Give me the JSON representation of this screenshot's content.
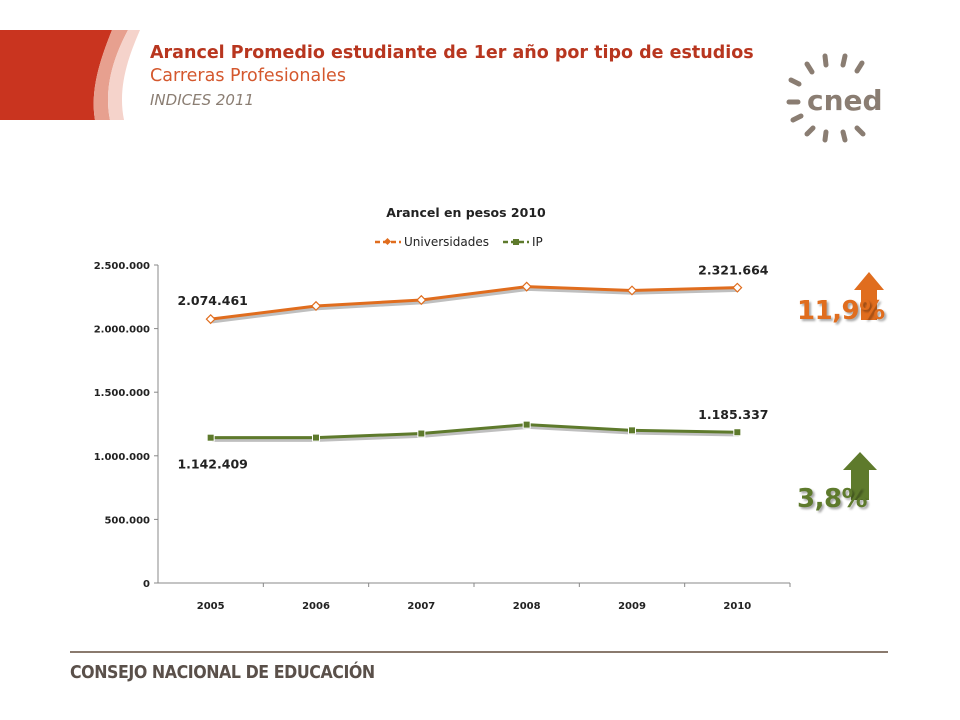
{
  "header": {
    "title": "Arancel Promedio estudiante de 1er año por tipo de estudios",
    "subtitle": "Carreras Profesionales",
    "indices": "INDICES 2011"
  },
  "logo": {
    "text": "cned",
    "icon": "sun-rays-logo-icon"
  },
  "badges": {
    "universidades": {
      "text": "11,9%",
      "color": "#e06d1e",
      "icon": "up-arrow-icon"
    },
    "ip": {
      "text": "3,8%",
      "color": "#5e7a2c",
      "icon": "up-arrow-icon"
    }
  },
  "footer": {
    "text": "CONSEJO NACIONAL DE EDUCACIÓN"
  },
  "chart_data": {
    "type": "line",
    "title": "Arancel en pesos 2010",
    "categories": [
      "2005",
      "2006",
      "2007",
      "2008",
      "2009",
      "2010"
    ],
    "ylim": [
      0,
      2500000
    ],
    "yticks": [
      0,
      500000,
      1000000,
      1500000,
      2000000,
      2500000
    ],
    "ytick_labels": [
      "0",
      "500.000",
      "1.000.000",
      "1.500.000",
      "2.000.000",
      "2.500.000"
    ],
    "legend_position": "top",
    "grid": false,
    "series": [
      {
        "name": "Universidades",
        "color": "#e06d1e",
        "marker": "diamond",
        "values": [
          2074461,
          2178000,
          2225000,
          2330000,
          2300000,
          2321664
        ],
        "labels": [
          {
            "index": 0,
            "text": "2.074.461"
          },
          {
            "index": 5,
            "text": "2.321.664"
          }
        ]
      },
      {
        "name": "IP",
        "color": "#5e7a2c",
        "marker": "square",
        "values": [
          1142409,
          1143000,
          1175000,
          1245000,
          1200000,
          1185337
        ],
        "labels": [
          {
            "index": 0,
            "text": "1.142.409"
          },
          {
            "index": 5,
            "text": "1.185.337"
          }
        ]
      }
    ]
  }
}
